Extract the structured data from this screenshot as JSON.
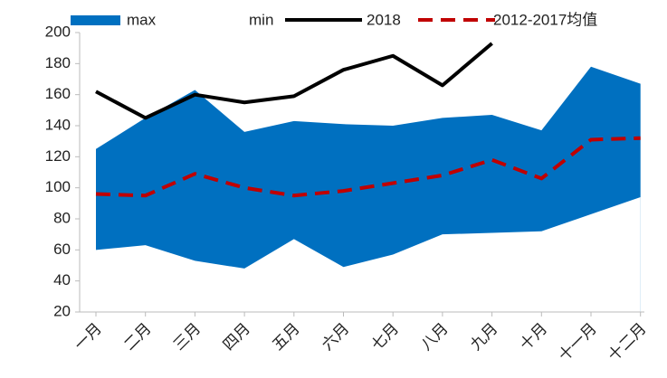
{
  "chart_data": {
    "type": "line",
    "categories": [
      "一月",
      "二月",
      "三月",
      "四月",
      "五月",
      "六月",
      "七月",
      "八月",
      "九月",
      "十月",
      "十一月",
      "十二月"
    ],
    "series": [
      {
        "name": "max",
        "color": "#0070c0",
        "kind": "area",
        "values": [
          125,
          145,
          163,
          136,
          143,
          141,
          140,
          145,
          147,
          137,
          178,
          167
        ]
      },
      {
        "name": "min",
        "color": "#ffffff",
        "kind": "area",
        "values": [
          60,
          63,
          53,
          48,
          67,
          49,
          57,
          70,
          71,
          72,
          83,
          94
        ]
      },
      {
        "name": "2018",
        "color": "#000000",
        "kind": "line",
        "values": [
          162,
          145,
          160,
          155,
          159,
          176,
          185,
          166,
          193,
          null,
          null,
          null
        ]
      },
      {
        "name": "2012-2017均值",
        "color": "#c00000",
        "kind": "dashed",
        "values": [
          96,
          95,
          109,
          100,
          95,
          98,
          103,
          108,
          118,
          106,
          131,
          132
        ]
      }
    ],
    "ylim": [
      20,
      200
    ],
    "yticks": [
      20,
      40,
      60,
      80,
      100,
      120,
      140,
      160,
      180,
      200
    ],
    "legend": "top"
  }
}
